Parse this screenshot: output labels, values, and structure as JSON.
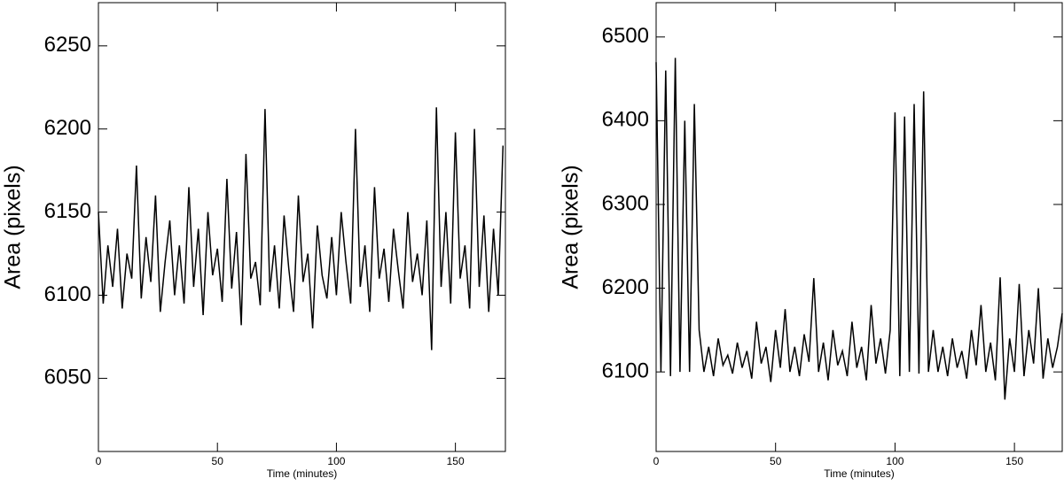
{
  "chart_data": [
    {
      "type": "line",
      "xlabel": "Time (minutes)",
      "ylabel": "Area (pixels)",
      "color": "#000000",
      "xlim": [
        0,
        171
      ],
      "ylim": [
        6006,
        6276
      ],
      "xticks": [
        0,
        50,
        100,
        150
      ],
      "yticks": [
        6050,
        6100,
        6150,
        6200,
        6250
      ],
      "x": [
        0,
        2,
        4,
        6,
        8,
        10,
        12,
        14,
        16,
        18,
        20,
        22,
        24,
        26,
        28,
        30,
        32,
        34,
        36,
        38,
        40,
        42,
        44,
        46,
        48,
        50,
        52,
        54,
        56,
        58,
        60,
        62,
        64,
        66,
        68,
        70,
        72,
        74,
        76,
        78,
        80,
        82,
        84,
        86,
        88,
        90,
        92,
        94,
        96,
        98,
        100,
        102,
        104,
        106,
        108,
        110,
        112,
        114,
        116,
        118,
        120,
        122,
        124,
        126,
        128,
        130,
        132,
        134,
        136,
        138,
        140,
        142,
        144,
        146,
        148,
        150,
        152,
        154,
        156,
        158,
        160,
        162,
        164,
        166,
        168,
        170
      ],
      "values": [
        6150,
        6095,
        6130,
        6105,
        6140,
        6092,
        6125,
        6110,
        6178,
        6098,
        6135,
        6108,
        6160,
        6090,
        6120,
        6145,
        6100,
        6130,
        6095,
        6165,
        6105,
        6140,
        6088,
        6150,
        6112,
        6128,
        6096,
        6170,
        6104,
        6138,
        6082,
        6185,
        6110,
        6120,
        6094,
        6212,
        6102,
        6130,
        6092,
        6148,
        6116,
        6090,
        6160,
        6108,
        6125,
        6080,
        6142,
        6112,
        6098,
        6135,
        6100,
        6150,
        6120,
        6095,
        6200,
        6105,
        6130,
        6090,
        6165,
        6110,
        6128,
        6096,
        6140,
        6115,
        6092,
        6150,
        6108,
        6125,
        6100,
        6145,
        6067,
        6213,
        6105,
        6150,
        6095,
        6198,
        6110,
        6130,
        6092,
        6200,
        6105,
        6148,
        6090,
        6140,
        6100,
        6190
      ]
    },
    {
      "type": "line",
      "xlabel": "Time (minutes)",
      "ylabel": "Area (pixels)",
      "color": "#000000",
      "xlim": [
        0,
        170
      ],
      "ylim": [
        6005,
        6541
      ],
      "xticks": [
        0,
        50,
        100,
        150
      ],
      "yticks": [
        6100,
        6200,
        6300,
        6400,
        6500
      ],
      "x": [
        0,
        2,
        4,
        6,
        8,
        10,
        12,
        14,
        16,
        18,
        20,
        22,
        24,
        26,
        28,
        30,
        32,
        34,
        36,
        38,
        40,
        42,
        44,
        46,
        48,
        50,
        52,
        54,
        56,
        58,
        60,
        62,
        64,
        66,
        68,
        70,
        72,
        74,
        76,
        78,
        80,
        82,
        84,
        86,
        88,
        90,
        92,
        94,
        96,
        98,
        100,
        102,
        104,
        106,
        108,
        110,
        112,
        114,
        116,
        118,
        120,
        122,
        124,
        126,
        128,
        130,
        132,
        134,
        136,
        138,
        140,
        142,
        144,
        146,
        148,
        150,
        152,
        154,
        156,
        158,
        160,
        162,
        164,
        166,
        168,
        170
      ],
      "values": [
        6470,
        6100,
        6460,
        6095,
        6475,
        6100,
        6400,
        6100,
        6420,
        6150,
        6100,
        6130,
        6095,
        6140,
        6108,
        6120,
        6098,
        6135,
        6105,
        6125,
        6092,
        6160,
        6110,
        6130,
        6088,
        6150,
        6105,
        6175,
        6100,
        6130,
        6095,
        6145,
        6112,
        6212,
        6100,
        6135,
        6090,
        6150,
        6108,
        6125,
        6095,
        6160,
        6105,
        6130,
        6090,
        6180,
        6110,
        6140,
        6098,
        6150,
        6410,
        6095,
        6405,
        6100,
        6420,
        6098,
        6435,
        6100,
        6150,
        6100,
        6130,
        6095,
        6140,
        6105,
        6125,
        6092,
        6150,
        6108,
        6180,
        6100,
        6135,
        6090,
        6213,
        6067,
        6140,
        6100,
        6205,
        6095,
        6150,
        6110,
        6200,
        6092,
        6140,
        6105,
        6130,
        6170
      ]
    }
  ]
}
